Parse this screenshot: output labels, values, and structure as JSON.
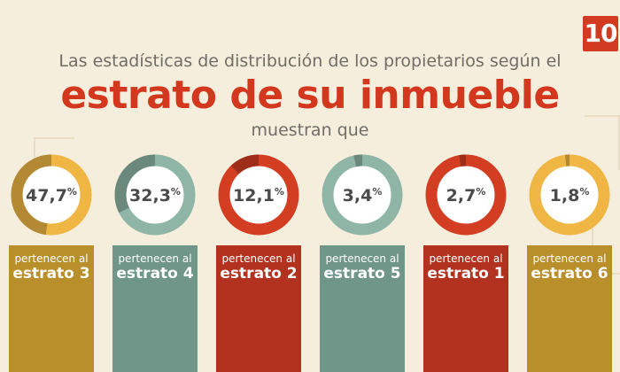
{
  "logo_text": "10",
  "header": {
    "subtitle": "Las estadísticas de distribución de los propietarios según el",
    "title": "estrato de su inmueble",
    "tagline": "muestran que"
  },
  "chart_data": {
    "type": "pie",
    "unit": "%",
    "items": [
      {
        "value": 47.7,
        "value_text": "47,7",
        "label_top": "pertenecen al",
        "label_bottom": "estrato 3",
        "color": "#b98f2c",
        "ring_color": "#efb644"
      },
      {
        "value": 32.3,
        "value_text": "32,3",
        "label_top": "pertenecen al",
        "label_bottom": "estrato 4",
        "color": "#6f9688",
        "ring_color": "#8fb5a6"
      },
      {
        "value": 12.1,
        "value_text": "12,1",
        "label_top": "pertenecen al",
        "label_bottom": "estrato 2",
        "color": "#b3321f",
        "ring_color": "#d33d22"
      },
      {
        "value": 3.4,
        "value_text": "3,4",
        "label_top": "pertenecen al",
        "label_bottom": "estrato 5",
        "color": "#6f9688",
        "ring_color": "#8fb5a6"
      },
      {
        "value": 2.7,
        "value_text": "2,7",
        "label_top": "pertenecen al",
        "label_bottom": "estrato 1",
        "color": "#b3321f",
        "ring_color": "#d33d22"
      },
      {
        "value": 1.8,
        "value_text": "1,8",
        "label_top": "pertenecen al",
        "label_bottom": "estrato 6",
        "color": "#b98f2c",
        "ring_color": "#efb644"
      }
    ]
  }
}
